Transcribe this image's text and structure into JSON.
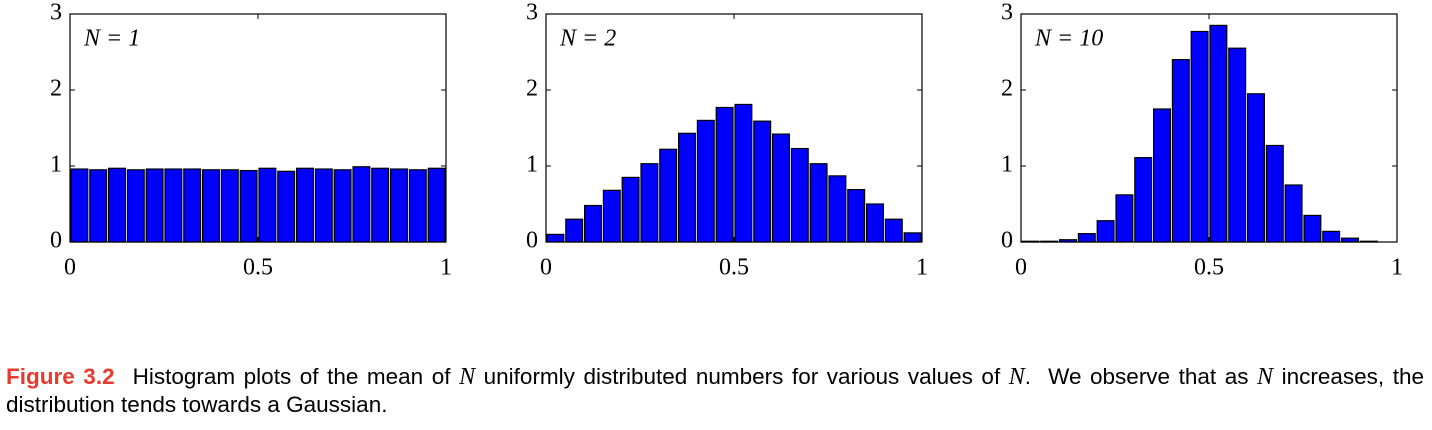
{
  "chart_data": [
    {
      "type": "histogram",
      "annotation": "N = 1",
      "color": "#0000ff",
      "bins": [
        0,
        0.05,
        0.1,
        0.15,
        0.2,
        0.25,
        0.3,
        0.35,
        0.4,
        0.45,
        0.5,
        0.55,
        0.6,
        0.65,
        0.7,
        0.75,
        0.8,
        0.85,
        0.9,
        0.95,
        1
      ],
      "counts": [
        0.96,
        0.95,
        0.97,
        0.95,
        0.96,
        0.96,
        0.96,
        0.95,
        0.95,
        0.94,
        0.97,
        0.93,
        0.97,
        0.96,
        0.95,
        0.99,
        0.97,
        0.96,
        0.95,
        0.97
      ],
      "xlim": [
        0,
        1
      ],
      "xticks": [
        0,
        0.5,
        1
      ],
      "ylim": [
        0,
        3
      ],
      "yticks": [
        0,
        1,
        2,
        3
      ],
      "grid": false
    },
    {
      "type": "histogram",
      "annotation": "N = 2",
      "color": "#0000ff",
      "bins": [
        0,
        0.05,
        0.1,
        0.15,
        0.2,
        0.25,
        0.3,
        0.35,
        0.4,
        0.45,
        0.5,
        0.55,
        0.6,
        0.65,
        0.7,
        0.75,
        0.8,
        0.85,
        0.9,
        0.95,
        1
      ],
      "counts": [
        0.1,
        0.3,
        0.48,
        0.68,
        0.85,
        1.03,
        1.22,
        1.43,
        1.6,
        1.77,
        1.81,
        1.59,
        1.42,
        1.23,
        1.03,
        0.87,
        0.69,
        0.5,
        0.3,
        0.12
      ],
      "xlim": [
        0,
        1
      ],
      "xticks": [
        0,
        0.5,
        1
      ],
      "ylim": [
        0,
        3
      ],
      "yticks": [
        0,
        1,
        2,
        3
      ],
      "grid": false
    },
    {
      "type": "histogram",
      "annotation": "N = 10",
      "color": "#0000ff",
      "bins": [
        0,
        0.05,
        0.1,
        0.15,
        0.2,
        0.25,
        0.3,
        0.35,
        0.4,
        0.45,
        0.5,
        0.55,
        0.6,
        0.65,
        0.7,
        0.75,
        0.8,
        0.85,
        0.9,
        0.95,
        1
      ],
      "counts": [
        0.01,
        0.01,
        0.03,
        0.11,
        0.28,
        0.62,
        1.11,
        1.75,
        2.4,
        2.77,
        2.85,
        2.55,
        1.95,
        1.27,
        0.75,
        0.35,
        0.14,
        0.05,
        0.01,
        0.0
      ],
      "xlim": [
        0,
        1
      ],
      "xticks": [
        0,
        0.5,
        1
      ],
      "ylim": [
        0,
        3
      ],
      "yticks": [
        0,
        1,
        2,
        3
      ],
      "grid": false
    }
  ],
  "caption": {
    "label": "Figure 3.2",
    "parts": [
      {
        "text": "Histogram plots of the mean of ",
        "math": false
      },
      {
        "text": "N",
        "math": true
      },
      {
        "text": " uniformly distributed numbers for various values of ",
        "math": false
      },
      {
        "text": "N",
        "math": true
      },
      {
        "text": ".  We observe that as ",
        "math": false
      },
      {
        "text": "N",
        "math": true
      },
      {
        "text": " increases, the distribution tends towards a Gaussian.",
        "math": false
      }
    ]
  }
}
